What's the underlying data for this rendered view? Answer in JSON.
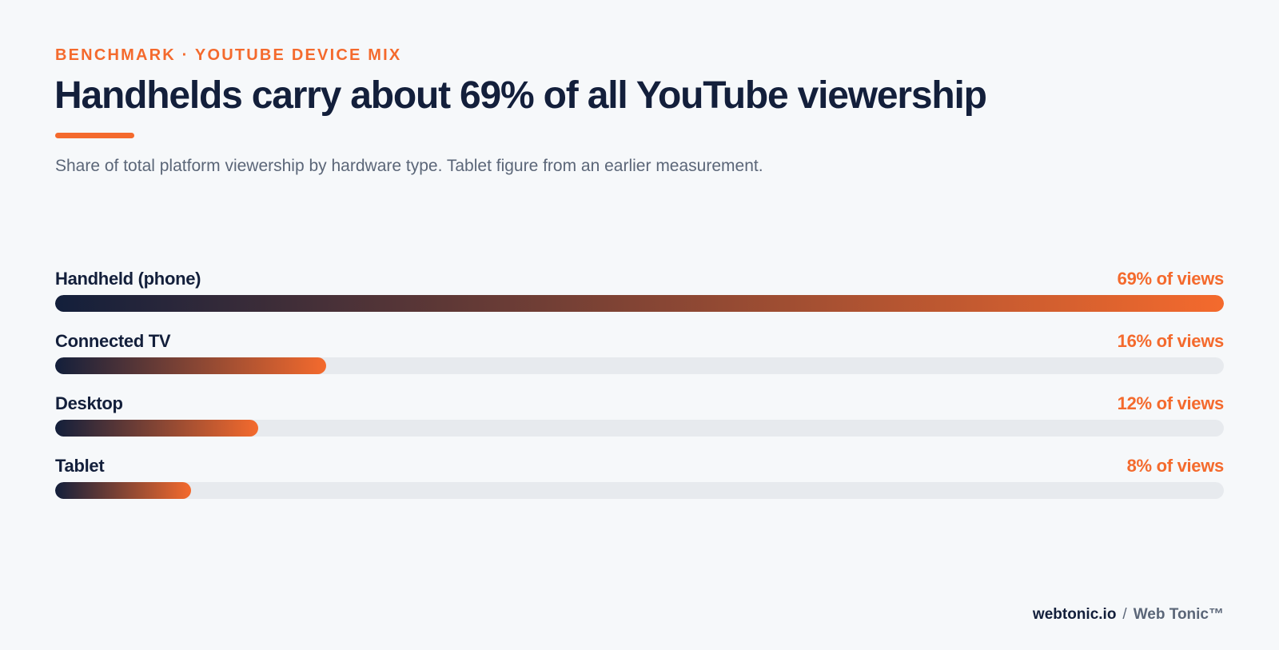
{
  "header": {
    "eyebrow": "BENCHMARK · YOUTUBE DEVICE MIX",
    "title": "Handhelds carry about 69% of all YouTube viewership",
    "subtitle": "Share of total platform viewership by hardware type. Tablet figure from an earlier measurement."
  },
  "chart_data": {
    "type": "bar",
    "orientation": "horizontal",
    "categories": [
      "Handheld (phone)",
      "Connected TV",
      "Desktop",
      "Tablet"
    ],
    "values": [
      69,
      16,
      12,
      8
    ],
    "value_labels": [
      "69% of views",
      "16% of views",
      "12% of views",
      "8% of views"
    ],
    "unit": "%",
    "xlim": [
      0,
      69
    ],
    "title": "Handhelds carry about 69% of all YouTube viewership",
    "subtitle": "Share of total platform viewership by hardware type. Tablet figure from an earlier measurement.",
    "grid": false,
    "legend": "none"
  },
  "footer": {
    "site": "webtonic.io",
    "separator": "/",
    "brand": "Web Tonic™"
  },
  "colors": {
    "accent": "#f46a2d",
    "navy": "#131f3b",
    "track": "#e7eaee",
    "muted": "#5b6678",
    "background": "#f6f8fa"
  }
}
